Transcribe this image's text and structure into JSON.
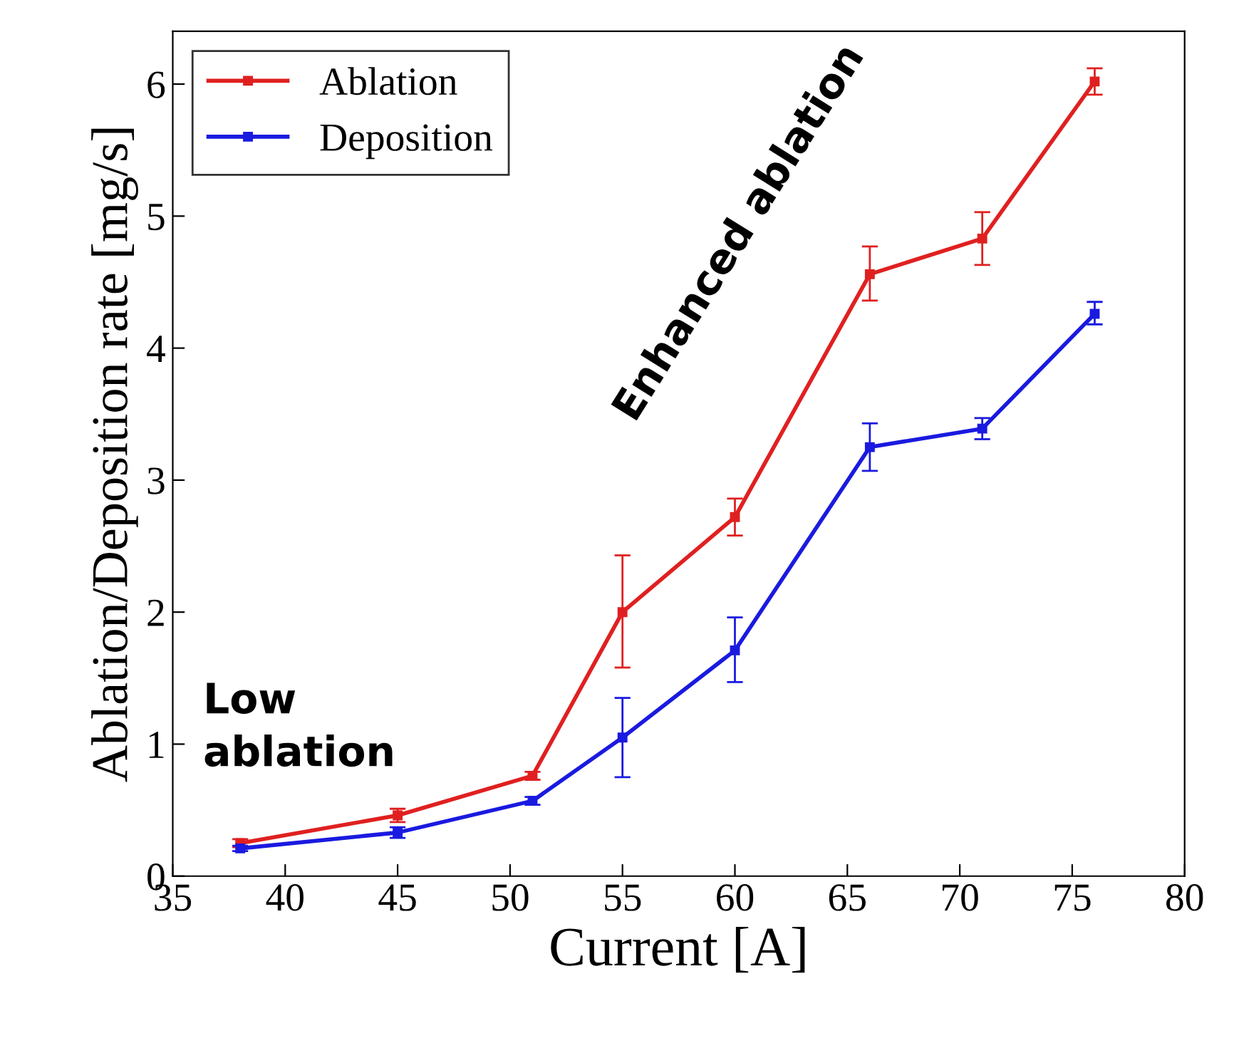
{
  "chart_data": {
    "type": "line",
    "xlabel": "Current [A]",
    "ylabel": "Ablation/Deposition rate [mg/s]",
    "x": [
      38,
      45,
      51,
      55,
      60,
      66,
      71,
      76
    ],
    "series": [
      {
        "name": "Ablation",
        "color": "#e02020",
        "values": [
          0.25,
          0.46,
          0.76,
          2.0,
          2.72,
          4.56,
          4.83,
          6.02
        ],
        "errors": [
          0.03,
          0.05,
          0.03,
          [
            1.58,
            2.43
          ],
          [
            2.58,
            2.86
          ],
          [
            4.36,
            4.77
          ],
          [
            4.63,
            5.03
          ],
          [
            5.92,
            6.12
          ]
        ]
      },
      {
        "name": "Deposition",
        "color": "#1a1ae0",
        "values": [
          0.21,
          0.33,
          0.57,
          1.05,
          1.71,
          3.25,
          3.39,
          4.26
        ],
        "errors": [
          0.02,
          0.04,
          0.03,
          [
            0.75,
            1.35
          ],
          [
            1.47,
            1.96
          ],
          [
            3.07,
            3.43
          ],
          [
            3.31,
            3.47
          ],
          [
            4.18,
            4.35
          ]
        ]
      }
    ],
    "xlim": [
      35,
      80
    ],
    "xticks": [
      35,
      40,
      45,
      50,
      55,
      60,
      65,
      70,
      75,
      80
    ],
    "ylim": [
      0,
      6.4
    ],
    "yticks": [
      0,
      1,
      2,
      3,
      4,
      5,
      6
    ],
    "annotations": [
      "Low\nablation",
      "Enhanced ablation"
    ],
    "legend": "top left",
    "grid": false,
    "marker": "square",
    "line_style": "solid"
  }
}
